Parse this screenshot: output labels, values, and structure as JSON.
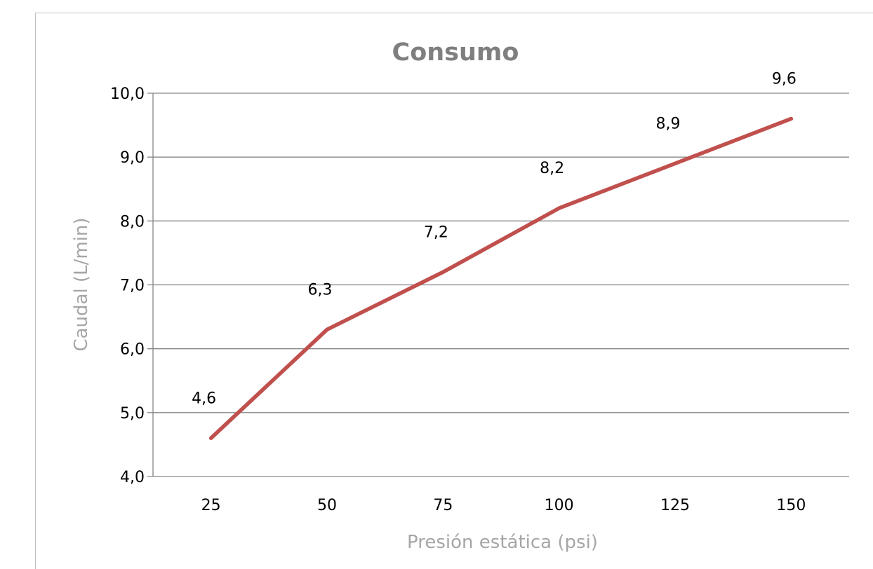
{
  "chart_data": {
    "type": "line",
    "title": "Consumo",
    "xlabel": "Presión estática (psi)",
    "ylabel": "Caudal (L/min)",
    "categories": [
      "25",
      "50",
      "75",
      "100",
      "125",
      "150"
    ],
    "series": [
      {
        "values": [
          4.6,
          6.3,
          7.2,
          8.2,
          8.9,
          9.6
        ],
        "data_labels": [
          "4,6",
          "6,3",
          "7,2",
          "8,2",
          "8,9",
          "9,6"
        ]
      }
    ],
    "ylim": [
      4.0,
      10.0
    ],
    "y_ticks": [
      "4,0",
      "5,0",
      "6,0",
      "7,0",
      "8,0",
      "9,0",
      "10,0"
    ],
    "y_tick_values": [
      4,
      5,
      6,
      7,
      8,
      9,
      10
    ],
    "grid": true,
    "legend": "none",
    "colors": {
      "line": "#c0504d",
      "grid": "#868686",
      "title": "#7f7f7f",
      "axis_title": "#a6a6a6"
    }
  }
}
